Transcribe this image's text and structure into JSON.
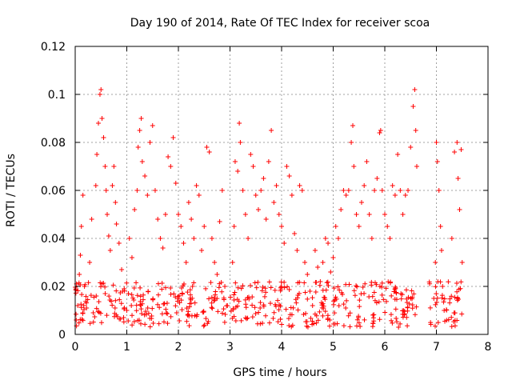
{
  "chart_data": {
    "type": "scatter",
    "title": "Day 190 of 2014, Rate Of TEC Index for receiver scoa",
    "xlabel": "GPS time / hours",
    "ylabel": "ROTI / TECUs",
    "xlim": [
      0,
      8
    ],
    "ylim": [
      0,
      0.12
    ],
    "x_ticks": [
      "0",
      "1",
      "2",
      "3",
      "4",
      "5",
      "6",
      "7",
      "8"
    ],
    "y_ticks": [
      "0",
      "0.02",
      "0.04",
      "0.06",
      "0.08",
      "0.1",
      "0.12"
    ],
    "grid": true,
    "marker": "+",
    "series": [
      {
        "name": "ROTI",
        "color": "#ff0000",
        "points": [
          [
            0.02,
            0.006
          ],
          [
            0.05,
            0.012
          ],
          [
            0.08,
            0.025
          ],
          [
            0.1,
            0.033
          ],
          [
            0.12,
            0.045
          ],
          [
            0.15,
            0.058
          ],
          [
            0.18,
            0.02
          ],
          [
            0.22,
            0.011
          ],
          [
            0.28,
            0.03
          ],
          [
            0.32,
            0.048
          ],
          [
            0.35,
            0.009
          ],
          [
            0.4,
            0.062
          ],
          [
            0.42,
            0.075
          ],
          [
            0.45,
            0.088
          ],
          [
            0.48,
            0.1
          ],
          [
            0.5,
            0.102
          ],
          [
            0.52,
            0.09
          ],
          [
            0.55,
            0.082
          ],
          [
            0.58,
            0.07
          ],
          [
            0.6,
            0.06
          ],
          [
            0.62,
            0.05
          ],
          [
            0.65,
            0.041
          ],
          [
            0.68,
            0.035
          ],
          [
            0.72,
            0.062
          ],
          [
            0.75,
            0.07
          ],
          [
            0.78,
            0.055
          ],
          [
            0.8,
            0.046
          ],
          [
            0.85,
            0.038
          ],
          [
            0.9,
            0.027
          ],
          [
            0.95,
            0.019
          ],
          [
            1.0,
            0.01
          ],
          [
            1.05,
            0.04
          ],
          [
            1.1,
            0.032
          ],
          [
            1.15,
            0.052
          ],
          [
            1.2,
            0.06
          ],
          [
            1.22,
            0.078
          ],
          [
            1.25,
            0.085
          ],
          [
            1.28,
            0.09
          ],
          [
            1.3,
            0.072
          ],
          [
            1.35,
            0.066
          ],
          [
            1.4,
            0.058
          ],
          [
            1.45,
            0.08
          ],
          [
            1.5,
            0.087
          ],
          [
            1.55,
            0.06
          ],
          [
            1.6,
            0.048
          ],
          [
            1.65,
            0.04
          ],
          [
            1.7,
            0.036
          ],
          [
            1.75,
            0.05
          ],
          [
            1.8,
            0.074
          ],
          [
            1.85,
            0.07
          ],
          [
            1.9,
            0.082
          ],
          [
            1.95,
            0.063
          ],
          [
            2.0,
            0.05
          ],
          [
            2.05,
            0.045
          ],
          [
            2.1,
            0.038
          ],
          [
            2.15,
            0.03
          ],
          [
            2.2,
            0.055
          ],
          [
            2.25,
            0.048
          ],
          [
            2.3,
            0.04
          ],
          [
            2.35,
            0.062
          ],
          [
            2.4,
            0.058
          ],
          [
            2.45,
            0.035
          ],
          [
            2.5,
            0.045
          ],
          [
            2.55,
            0.078
          ],
          [
            2.6,
            0.076
          ],
          [
            2.65,
            0.04
          ],
          [
            2.7,
            0.03
          ],
          [
            2.75,
            0.025
          ],
          [
            2.8,
            0.047
          ],
          [
            2.85,
            0.06
          ],
          [
            2.9,
            0.02
          ],
          [
            2.95,
            0.012
          ],
          [
            3.05,
            0.03
          ],
          [
            3.08,
            0.045
          ],
          [
            3.1,
            0.072
          ],
          [
            3.15,
            0.068
          ],
          [
            3.18,
            0.088
          ],
          [
            3.2,
            0.08
          ],
          [
            3.25,
            0.06
          ],
          [
            3.3,
            0.05
          ],
          [
            3.35,
            0.04
          ],
          [
            3.4,
            0.075
          ],
          [
            3.45,
            0.07
          ],
          [
            3.5,
            0.058
          ],
          [
            3.55,
            0.052
          ],
          [
            3.6,
            0.06
          ],
          [
            3.65,
            0.065
          ],
          [
            3.7,
            0.048
          ],
          [
            3.75,
            0.072
          ],
          [
            3.8,
            0.085
          ],
          [
            3.85,
            0.055
          ],
          [
            3.9,
            0.062
          ],
          [
            3.95,
            0.05
          ],
          [
            4.0,
            0.045
          ],
          [
            4.05,
            0.038
          ],
          [
            4.1,
            0.07
          ],
          [
            4.15,
            0.066
          ],
          [
            4.2,
            0.058
          ],
          [
            4.25,
            0.042
          ],
          [
            4.3,
            0.035
          ],
          [
            4.35,
            0.062
          ],
          [
            4.4,
            0.06
          ],
          [
            4.45,
            0.03
          ],
          [
            4.5,
            0.025
          ],
          [
            4.55,
            0.018
          ],
          [
            4.6,
            0.012
          ],
          [
            4.65,
            0.035
          ],
          [
            4.7,
            0.028
          ],
          [
            4.75,
            0.022
          ],
          [
            4.8,
            0.03
          ],
          [
            4.85,
            0.04
          ],
          [
            4.9,
            0.038
          ],
          [
            4.95,
            0.026
          ],
          [
            5.0,
            0.032
          ],
          [
            5.05,
            0.045
          ],
          [
            5.1,
            0.04
          ],
          [
            5.15,
            0.052
          ],
          [
            5.2,
            0.06
          ],
          [
            5.25,
            0.058
          ],
          [
            5.3,
            0.06
          ],
          [
            5.35,
            0.08
          ],
          [
            5.38,
            0.087
          ],
          [
            5.4,
            0.07
          ],
          [
            5.45,
            0.05
          ],
          [
            5.5,
            0.045
          ],
          [
            5.55,
            0.055
          ],
          [
            5.6,
            0.062
          ],
          [
            5.65,
            0.072
          ],
          [
            5.7,
            0.05
          ],
          [
            5.75,
            0.04
          ],
          [
            5.8,
            0.06
          ],
          [
            5.85,
            0.065
          ],
          [
            5.9,
            0.084
          ],
          [
            5.92,
            0.085
          ],
          [
            5.95,
            0.06
          ],
          [
            6.0,
            0.05
          ],
          [
            6.05,
            0.045
          ],
          [
            6.1,
            0.04
          ],
          [
            6.15,
            0.062
          ],
          [
            6.2,
            0.058
          ],
          [
            6.25,
            0.075
          ],
          [
            6.3,
            0.06
          ],
          [
            6.35,
            0.05
          ],
          [
            6.4,
            0.058
          ],
          [
            6.45,
            0.06
          ],
          [
            6.5,
            0.078
          ],
          [
            6.55,
            0.095
          ],
          [
            6.58,
            0.102
          ],
          [
            6.6,
            0.085
          ],
          [
            6.62,
            0.07
          ],
          [
            6.95,
            0.015
          ],
          [
            6.98,
            0.03
          ],
          [
            7.0,
            0.08
          ],
          [
            7.02,
            0.072
          ],
          [
            7.05,
            0.06
          ],
          [
            7.08,
            0.045
          ],
          [
            7.1,
            0.035
          ],
          [
            7.12,
            0.02
          ],
          [
            7.15,
            0.01
          ],
          [
            7.3,
            0.04
          ],
          [
            7.35,
            0.076
          ],
          [
            7.4,
            0.08
          ],
          [
            7.42,
            0.065
          ],
          [
            7.45,
            0.052
          ],
          [
            7.48,
            0.077
          ],
          [
            7.5,
            0.03
          ]
        ],
        "baseline_band": {
          "segments": [
            [
              0.0,
              2.95
            ],
            [
              3.0,
              6.62
            ],
            [
              6.85,
              7.5
            ]
          ],
          "min": 0.003,
          "max": 0.022
        }
      }
    ]
  }
}
